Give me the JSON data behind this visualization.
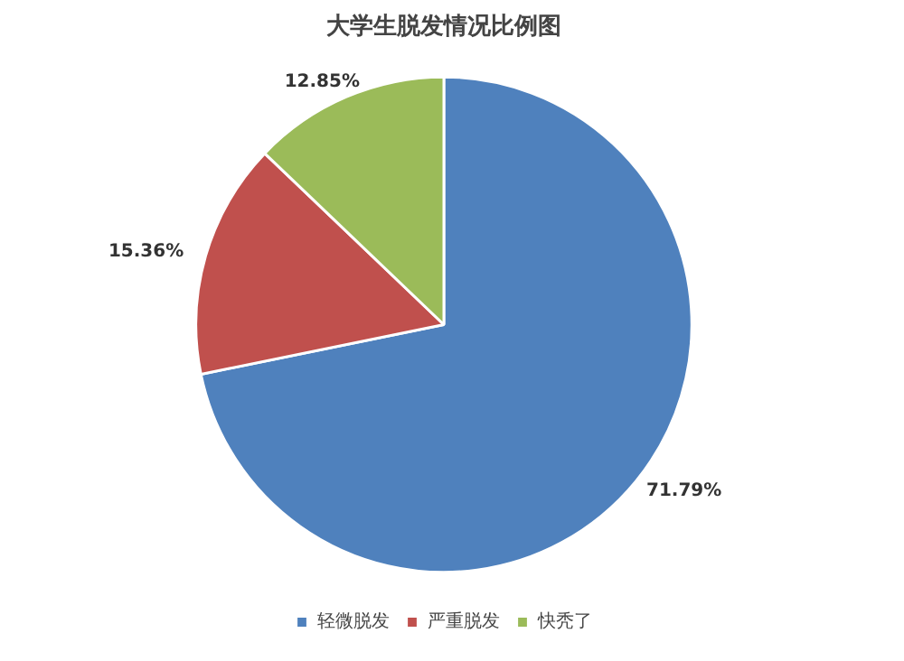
{
  "chart_data": {
    "type": "pie",
    "title": "大学生脱发情况比例图",
    "categories": [
      "轻微脱发",
      "严重脱发",
      "快秃了"
    ],
    "values": [
      71.79,
      15.36,
      12.85
    ],
    "colors": [
      "#4f81bd",
      "#c0504d",
      "#9bbb59"
    ],
    "value_labels": [
      "71.79%",
      "15.36%",
      "12.85%"
    ],
    "legend": "bottom"
  }
}
